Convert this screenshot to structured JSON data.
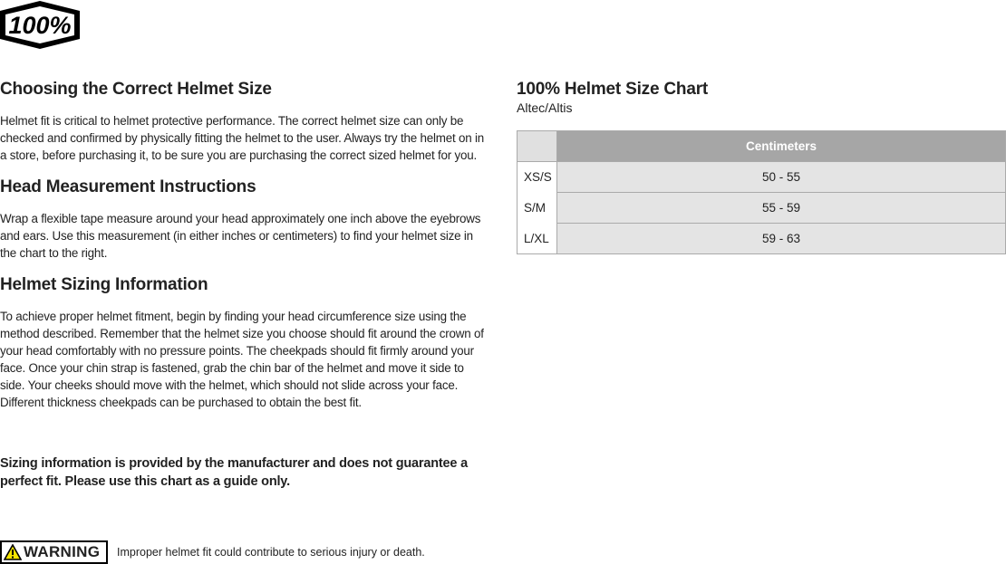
{
  "logo": {
    "text": "100%"
  },
  "left": {
    "sections": [
      {
        "heading": "Choosing the Correct Helmet Size",
        "body": "Helmet fit is critical to helmet protective performance. The correct helmet size can only be checked and confirmed by physically fitting the helmet to the user. Always try the helmet on in a store, before purchasing it, to be sure you are purchasing the correct sized helmet for you."
      },
      {
        "heading": "Head Measurement Instructions",
        "body": "Wrap a flexible tape measure around your head approximately one inch above the eyebrows and ears. Use this measurement (in either inches or centimeters) to find your helmet size in the chart to the right."
      },
      {
        "heading": "Helmet Sizing Information",
        "body": "To achieve proper helmet fitment, begin by finding your head circumference size using the method described. Remember that the helmet size you choose should fit around the crown of your head comfortably with no pressure points. The cheekpads should fit firmly around your face. Once your chin strap is fastened, grab the chin bar of the helmet and move it side to side. Your cheeks should move with the helmet, which should not slide across your face. Different thickness cheekpads can be purchased to obtain the best fit."
      }
    ],
    "disclaimer": "Sizing information is provided by the manufacturer and does not guarantee a perfect fit. Please use this chart as a guide only.",
    "warning": {
      "badge": "WARNING",
      "text": "Improper helmet fit could contribute to serious injury or death.",
      "color": "#f5e400"
    }
  },
  "chart": {
    "title": "100% Helmet Size Chart",
    "subtitle": "Altec/Altis",
    "header": "Centimeters",
    "rows": [
      {
        "size": "XS/S",
        "cm": "50 - 55"
      },
      {
        "size": "S/M",
        "cm": "55 - 59"
      },
      {
        "size": "L/XL",
        "cm": "59 - 63"
      }
    ]
  }
}
